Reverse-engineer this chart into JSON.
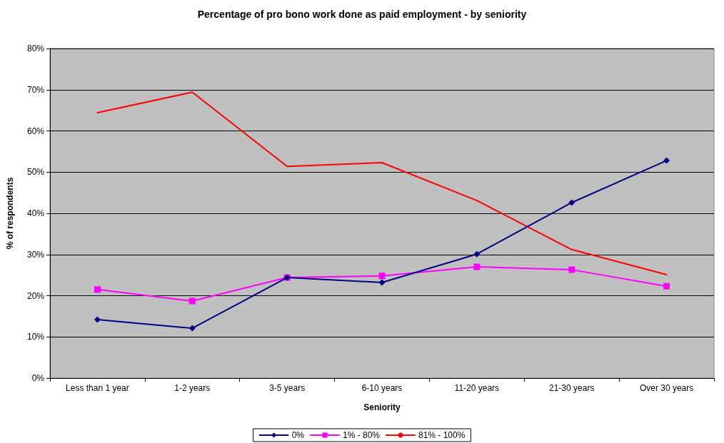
{
  "chart_data": {
    "type": "line",
    "title": "Percentage of pro bono work done as paid employment - by seniority",
    "xlabel": "Seniority",
    "ylabel": "% of respondents",
    "categories": [
      "Less than 1 year",
      "1-2 years",
      "3-5 years",
      "6-10 years",
      "11-20 years",
      "21-30 years",
      "Over 30 years"
    ],
    "series": [
      {
        "name": "0%",
        "color": "#000080",
        "marker": "diamond",
        "values": [
          14.2,
          12.1,
          24.4,
          23.2,
          30.1,
          42.6,
          52.8
        ]
      },
      {
        "name": "1% - 80%",
        "color": "#ff00ff",
        "marker": "square",
        "values": [
          21.5,
          18.7,
          24.4,
          24.8,
          27.0,
          26.3,
          22.3
        ]
      },
      {
        "name": "81% - 100%",
        "color": "#ff0000",
        "marker": "none",
        "values": [
          64.4,
          69.4,
          51.4,
          52.3,
          43.1,
          31.2,
          25.1
        ]
      }
    ],
    "ylim": [
      0,
      80
    ],
    "yticks": [
      {
        "value": 0,
        "label": "0%"
      },
      {
        "value": 10,
        "label": "10%"
      },
      {
        "value": 20,
        "label": "20%"
      },
      {
        "value": 30,
        "label": "30%"
      },
      {
        "value": 40,
        "label": "40%"
      },
      {
        "value": 50,
        "label": "50%"
      },
      {
        "value": 60,
        "label": "60%"
      },
      {
        "value": 70,
        "label": "70%"
      },
      {
        "value": 80,
        "label": "80%"
      }
    ],
    "grid": "y",
    "legend": "bottom"
  }
}
